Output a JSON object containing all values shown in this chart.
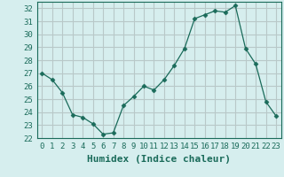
{
  "xlabel": "Humidex (Indice chaleur)",
  "ylabel": "",
  "x_values": [
    0,
    1,
    2,
    3,
    4,
    5,
    6,
    7,
    8,
    9,
    10,
    11,
    12,
    13,
    14,
    15,
    16,
    17,
    18,
    19,
    20,
    21,
    22,
    23
  ],
  "y_values": [
    27,
    26.5,
    25.5,
    23.8,
    23.6,
    23.1,
    22.3,
    22.4,
    24.5,
    25.2,
    26.0,
    25.7,
    26.5,
    27.6,
    28.9,
    31.2,
    31.5,
    31.8,
    31.7,
    32.2,
    28.9,
    27.7,
    24.8,
    23.7
  ],
  "ylim": [
    22,
    32.5
  ],
  "yticks": [
    22,
    23,
    24,
    25,
    26,
    27,
    28,
    29,
    30,
    31,
    32
  ],
  "xticks": [
    0,
    1,
    2,
    3,
    4,
    5,
    6,
    7,
    8,
    9,
    10,
    11,
    12,
    13,
    14,
    15,
    16,
    17,
    18,
    19,
    20,
    21,
    22,
    23
  ],
  "line_color": "#1a6b5a",
  "marker": "D",
  "marker_size": 2.5,
  "background_color": "#d6eeee",
  "grid_color": "#b8c8c8",
  "tick_label_fontsize": 6.5,
  "xlabel_fontsize": 8,
  "tick_color": "#1a6b5a"
}
